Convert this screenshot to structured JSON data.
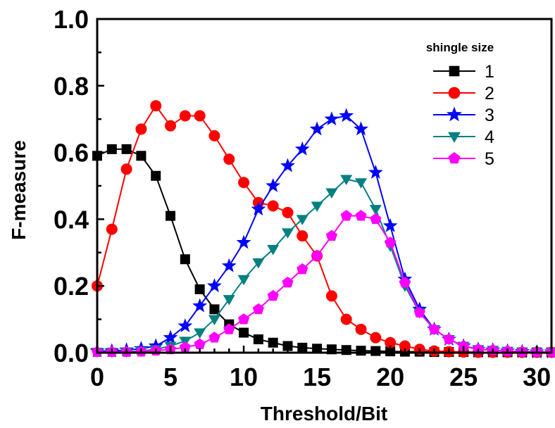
{
  "chart_data": {
    "type": "line",
    "xlabel": "Threshold/Bit",
    "ylabel": "F-measure",
    "xlim": [
      0,
      31
    ],
    "ylim": [
      0,
      1.0
    ],
    "x_ticks": [
      "0",
      "5",
      "10",
      "15",
      "20",
      "25",
      "30"
    ],
    "x_tick_values": [
      0,
      5,
      10,
      15,
      20,
      25,
      30
    ],
    "y_ticks": [
      "0.0",
      "0.2",
      "0.4",
      "0.6",
      "0.8",
      "1.0"
    ],
    "y_tick_values": [
      0,
      0.2,
      0.4,
      0.6,
      0.8,
      1.0
    ],
    "grid": false,
    "legend_title": "shingle size",
    "legend_position": "top-right",
    "x": [
      0,
      1,
      2,
      3,
      4,
      5,
      6,
      7,
      8,
      9,
      10,
      11,
      12,
      13,
      14,
      15,
      16,
      17,
      18,
      19,
      20,
      21,
      22,
      23,
      24,
      25,
      26,
      27,
      28,
      29,
      30,
      31
    ],
    "series": [
      {
        "name": "1",
        "color": "#000000",
        "marker": "square",
        "values": [
          0.59,
          0.61,
          0.61,
          0.59,
          0.53,
          0.41,
          0.28,
          0.19,
          0.13,
          0.085,
          0.06,
          0.04,
          0.03,
          0.02,
          0.015,
          0.012,
          0.01,
          0.008,
          0.006,
          0.005,
          0.004,
          0.003,
          0.003,
          0.002,
          0.002,
          0.002,
          0.001,
          0.001,
          0.001,
          0.001,
          0.001,
          0.001
        ]
      },
      {
        "name": "2",
        "color": "#ff0000",
        "marker": "circle",
        "values": [
          0.2,
          0.37,
          0.55,
          0.67,
          0.74,
          0.68,
          0.71,
          0.71,
          0.65,
          0.58,
          0.51,
          0.45,
          0.44,
          0.42,
          0.35,
          0.29,
          0.17,
          0.1,
          0.07,
          0.045,
          0.03,
          0.02,
          0.01,
          0.005,
          0.003,
          0.002,
          0.001,
          0.001,
          0.001,
          0.001,
          0.001,
          0.001
        ]
      },
      {
        "name": "3",
        "color": "#0000ff",
        "marker": "star",
        "values": [
          0.005,
          0.005,
          0.008,
          0.012,
          0.02,
          0.045,
          0.08,
          0.14,
          0.2,
          0.26,
          0.33,
          0.43,
          0.5,
          0.56,
          0.61,
          0.67,
          0.7,
          0.71,
          0.67,
          0.54,
          0.38,
          0.22,
          0.13,
          0.07,
          0.04,
          0.02,
          0.01,
          0.008,
          0.005,
          0.003,
          0.002,
          0.002
        ]
      },
      {
        "name": "4",
        "color": "#008080",
        "marker": "triangle-down",
        "values": [
          0.002,
          0.002,
          0.003,
          0.005,
          0.01,
          0.02,
          0.035,
          0.06,
          0.1,
          0.16,
          0.22,
          0.27,
          0.31,
          0.36,
          0.4,
          0.44,
          0.48,
          0.52,
          0.51,
          0.43,
          0.32,
          0.2,
          0.12,
          0.07,
          0.04,
          0.02,
          0.01,
          0.008,
          0.005,
          0.003,
          0.002,
          0.002
        ]
      },
      {
        "name": "5",
        "color": "#ff00ff",
        "marker": "pentagon",
        "values": [
          0.002,
          0.002,
          0.002,
          0.003,
          0.006,
          0.01,
          0.016,
          0.025,
          0.045,
          0.07,
          0.1,
          0.13,
          0.17,
          0.21,
          0.25,
          0.29,
          0.35,
          0.41,
          0.41,
          0.4,
          0.33,
          0.21,
          0.12,
          0.07,
          0.04,
          0.02,
          0.01,
          0.008,
          0.005,
          0.003,
          0.002,
          0.002
        ]
      }
    ]
  }
}
